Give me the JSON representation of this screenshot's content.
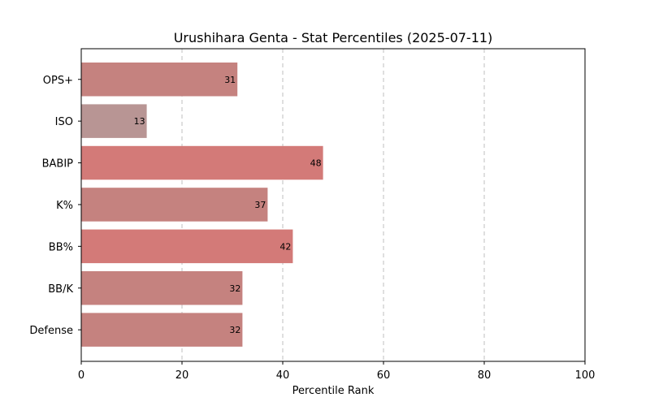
{
  "chart_data": {
    "type": "bar",
    "orientation": "horizontal",
    "title": "Urushihara Genta - Stat Percentiles (2025-07-11)",
    "xlabel": "Percentile Rank",
    "ylabel": "",
    "xlim": [
      0,
      100
    ],
    "xticks": [
      0,
      20,
      40,
      60,
      80,
      100
    ],
    "grid": "x-dashed",
    "categories": [
      "OPS+",
      "ISO",
      "BABIP",
      "K%",
      "BB%",
      "BB/K",
      "Defense"
    ],
    "values": [
      31,
      13,
      48,
      37,
      42,
      32,
      32
    ],
    "colors": [
      "#c5827f",
      "#b89594",
      "#d37a78",
      "#c5827f",
      "#d37a78",
      "#c5827f",
      "#c5827f"
    ]
  }
}
